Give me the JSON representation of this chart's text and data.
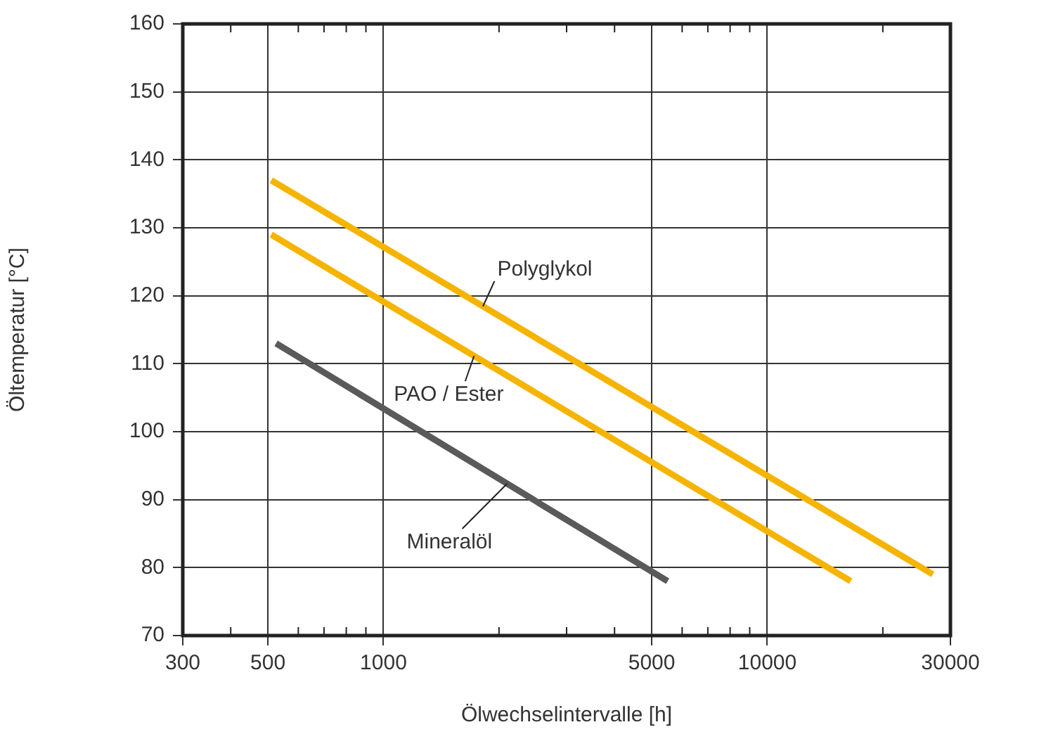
{
  "chart_data": {
    "type": "line",
    "xlabel": "Ölwechselintervalle [h]",
    "ylabel": "Öltemperatur [°C]",
    "log": "x",
    "xlim": [
      300,
      30000
    ],
    "xticks": [
      300,
      {
        "value": 400,
        "label": null
      },
      500,
      {
        "value": 600,
        "label": null
      },
      {
        "value": 700,
        "label": null
      },
      {
        "value": 800,
        "label": null
      },
      {
        "value": 900,
        "label": null
      },
      1000,
      {
        "value": 2000,
        "label": null
      },
      {
        "value": 3000,
        "label": null
      },
      {
        "value": 4000,
        "label": null
      },
      5000,
      {
        "value": 6000,
        "label": null
      },
      {
        "value": 7000,
        "label": null
      },
      {
        "value": 8000,
        "label": null
      },
      {
        "value": 9000,
        "label": null
      },
      10000,
      {
        "value": 20000,
        "label": null
      },
      30000
    ],
    "ylim": [
      70,
      160
    ],
    "yticks": [
      70,
      80,
      90,
      100,
      110,
      120,
      130,
      140,
      150,
      160
    ],
    "grid": true,
    "legend": false,
    "marker": "none",
    "line_style": "solid",
    "series": [
      {
        "name": "Polyglykol",
        "color": "#f5b400",
        "x": [
          510,
          27000
        ],
        "values": [
          137,
          79
        ]
      },
      {
        "name": "PAO / Ester",
        "color": "#f5b400",
        "x": [
          510,
          16500
        ],
        "values": [
          129,
          78
        ]
      },
      {
        "name": "Mineralöl",
        "color": "#5a5a5a",
        "x": [
          525,
          5500
        ],
        "values": [
          113,
          78
        ]
      }
    ]
  }
}
